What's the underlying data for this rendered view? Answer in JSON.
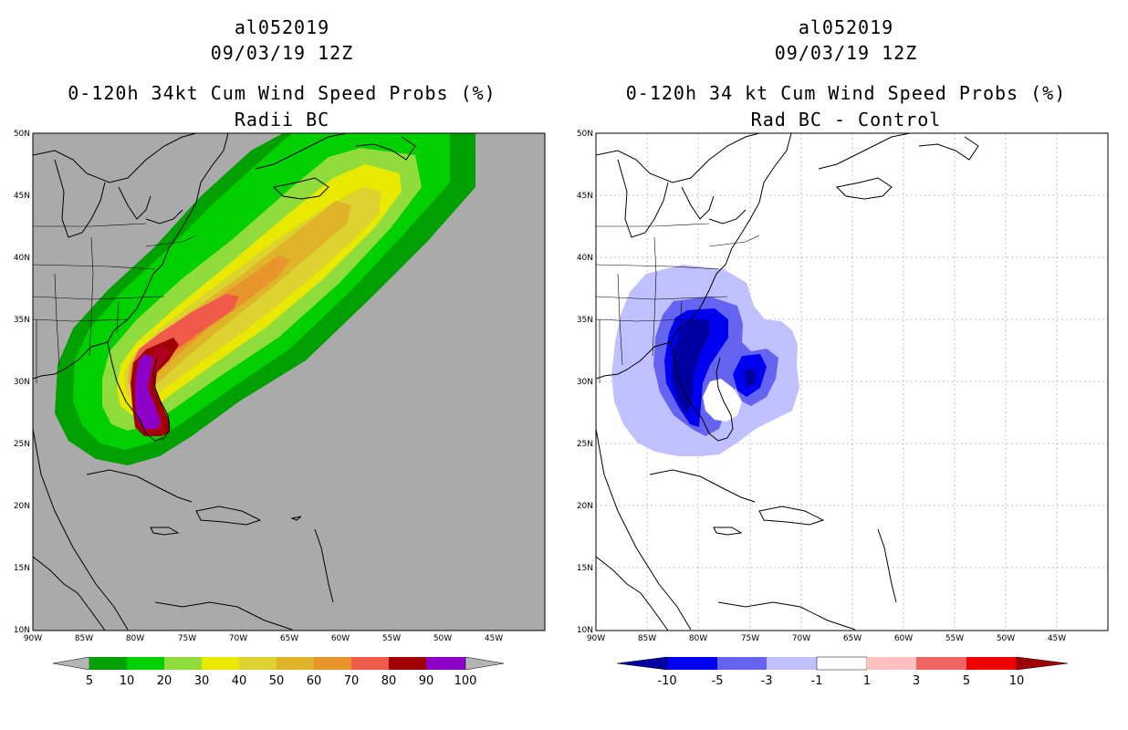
{
  "left": {
    "storm_id": "al052019",
    "datetime": "09/03/19 12Z",
    "title": "0-120h 34kt Cum Wind Speed Probs (%)",
    "subtitle": "Radii BC",
    "background_color": "#aaaaaa",
    "lat_labels": [
      "50N",
      "45N",
      "40N",
      "35N",
      "30N",
      "25N",
      "20N",
      "15N",
      "10N"
    ],
    "lon_labels": [
      "90W",
      "85W",
      "80W",
      "75W",
      "70W",
      "65W",
      "60W",
      "55W",
      "50W",
      "45W"
    ],
    "colorbar": {
      "levels": [
        "5",
        "10",
        "20",
        "30",
        "40",
        "50",
        "60",
        "70",
        "80",
        "90",
        "100"
      ],
      "colors": [
        "#00a000",
        "#00d000",
        "#90dc3c",
        "#e8e800",
        "#dcd230",
        "#e0b428",
        "#e8962c",
        "#f05a4a",
        "#a00000",
        "#8c00c8"
      ],
      "end_color": "#b4b4b4"
    }
  },
  "right": {
    "storm_id": "al052019",
    "datetime": "09/03/19 12Z",
    "title": "0-120h 34 kt Cum Wind Speed Probs (%)",
    "subtitle": "Rad BC - Control",
    "background_color": "#ffffff",
    "lat_labels": [
      "50N",
      "45N",
      "40N",
      "35N",
      "30N",
      "25N",
      "20N",
      "15N",
      "10N"
    ],
    "lon_labels": [
      "90W",
      "85W",
      "80W",
      "75W",
      "70W",
      "65W",
      "60W",
      "55W",
      "50W",
      "45W"
    ],
    "colorbar": {
      "levels": [
        "-10",
        "-5",
        "-3",
        "-1",
        "1",
        "3",
        "5",
        "10"
      ],
      "colors": [
        "#0000a0",
        "#0000f0",
        "#6464f0",
        "#c0c0ff",
        "#ffffff",
        "#ffc0c0",
        "#f06464",
        "#f00000",
        "#a00000"
      ],
      "low_end_color": "#0000a0",
      "high_end_color": "#a00000"
    }
  }
}
